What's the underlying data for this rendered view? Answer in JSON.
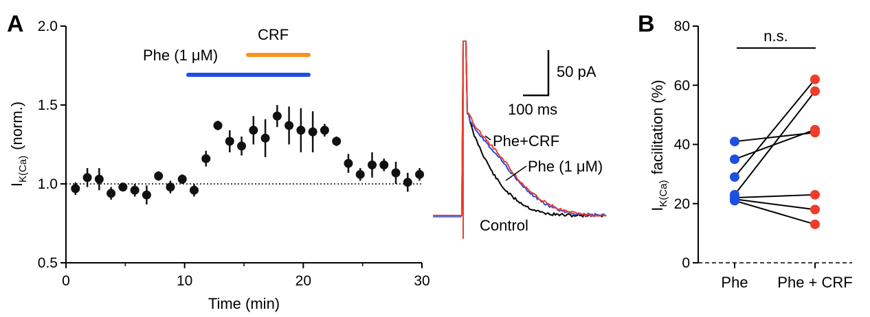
{
  "panel_labels": {
    "a": "A",
    "b": "B"
  },
  "colors": {
    "phe": "#1f4fe0",
    "crf": "#f7931e",
    "phe_crf": "#f03c2a",
    "control": "#000000",
    "marker": "#111111"
  },
  "bars": {
    "phe_label": "Phe (1 μM)",
    "crf_label": "CRF"
  },
  "traces": {
    "labels": {
      "phe_crf": "Phe+CRF",
      "phe": "Phe (1 μM)",
      "control": "Control"
    },
    "scale": {
      "current": "50 pA",
      "time": "100 ms"
    }
  },
  "chart_data": [
    {
      "type": "scatter",
      "xlabel": "Time (min)",
      "ylabel_main": "I",
      "ylabel_sub": "K(Ca)",
      "ylabel_tail": "(norm.)",
      "xlim": [
        0,
        30
      ],
      "ylim": [
        0.5,
        2.0
      ],
      "xticks": [
        "0",
        "10",
        "20",
        "30"
      ],
      "yticks": [
        "0.5",
        "1.0",
        "1.5",
        "2.0"
      ],
      "baseline": 1.0,
      "drug_bars": [
        {
          "name": "Phe (1 μM)",
          "start": 10,
          "end": 20.3
        },
        {
          "name": "CRF",
          "start": 15.3,
          "end": 20.3
        }
      ],
      "x": [
        0.8,
        1.8,
        2.8,
        3.8,
        4.8,
        5.8,
        6.8,
        7.8,
        8.8,
        9.8,
        10.8,
        11.8,
        12.8,
        13.8,
        14.8,
        15.8,
        16.8,
        17.8,
        18.8,
        19.8,
        20.8,
        21.8,
        22.8,
        23.8,
        24.8,
        25.8,
        26.8,
        27.8,
        28.8,
        29.8
      ],
      "y": [
        0.97,
        1.04,
        1.03,
        0.94,
        0.98,
        0.96,
        0.93,
        1.05,
        0.98,
        1.03,
        0.96,
        1.16,
        1.37,
        1.27,
        1.24,
        1.34,
        1.29,
        1.43,
        1.37,
        1.34,
        1.33,
        1.34,
        1.27,
        1.13,
        1.06,
        1.12,
        1.12,
        1.07,
        1.01,
        1.06
      ],
      "err": [
        0.04,
        0.06,
        0.07,
        0.04,
        0.02,
        0.04,
        0.06,
        0.03,
        0.04,
        0.03,
        0.04,
        0.05,
        0.03,
        0.07,
        0.06,
        0.09,
        0.12,
        0.07,
        0.12,
        0.14,
        0.13,
        0.04,
        0.03,
        0.06,
        0.04,
        0.08,
        0.04,
        0.07,
        0.06,
        0.04
      ]
    },
    {
      "type": "line",
      "title": "",
      "description_series": [
        "Control",
        "Phe (1 μM)",
        "Phe+CRF"
      ],
      "time_ms": [
        0,
        10,
        20,
        40,
        60,
        80,
        100,
        120,
        140,
        160,
        180,
        200,
        230,
        260,
        300
      ],
      "series": [
        {
          "name": "Control",
          "values": [
            300,
            140,
            118,
            88,
            62,
            42,
            28,
            18,
            10,
            5,
            2,
            1,
            0,
            0,
            0
          ]
        },
        {
          "name": "Phe (1 μM)",
          "values": [
            300,
            142,
            130,
            112,
            96,
            80,
            62,
            45,
            32,
            22,
            14,
            8,
            3,
            1,
            0
          ]
        },
        {
          "name": "Phe+CRF",
          "values": [
            300,
            150,
            134,
            116,
            100,
            84,
            66,
            48,
            34,
            24,
            16,
            9,
            4,
            1,
            0
          ]
        }
      ]
    },
    {
      "type": "scatter",
      "ylabel_main": "I",
      "ylabel_sub": "K(Ca)",
      "ylabel_tail": "facilitation (%)",
      "categories": [
        "Phe",
        "Phe + CRF"
      ],
      "ylim": [
        0,
        80
      ],
      "yticks": [
        "0",
        "20",
        "40",
        "60",
        "80"
      ],
      "significance": "n.s.",
      "pairs": [
        [
          41,
          44
        ],
        [
          35,
          45
        ],
        [
          29,
          62
        ],
        [
          23,
          58
        ],
        [
          22,
          23
        ],
        [
          21.5,
          18
        ],
        [
          21,
          13
        ]
      ]
    }
  ]
}
